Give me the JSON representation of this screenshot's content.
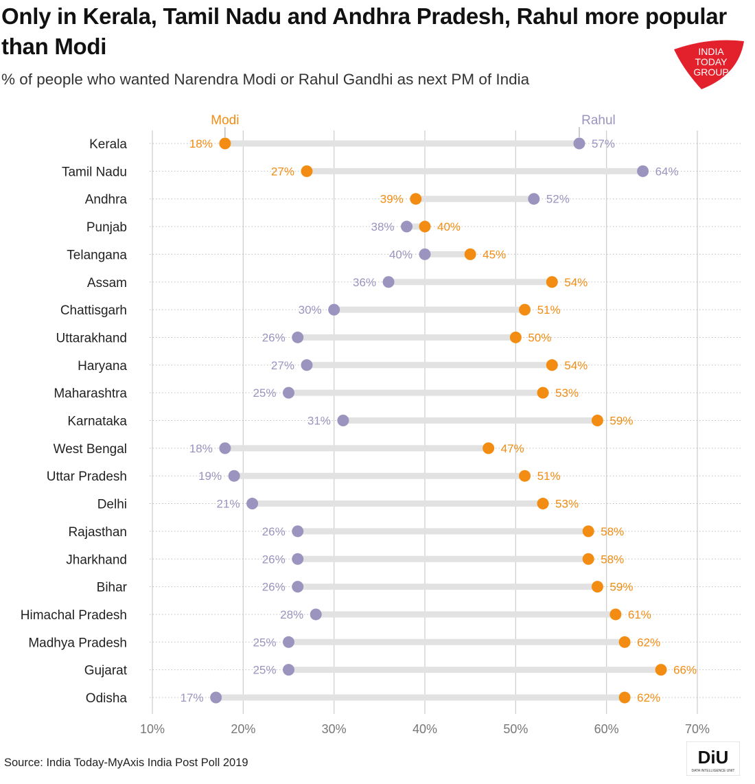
{
  "title": "Only in Kerala, Tamil Nadu and Andhra Pradesh, Rahul more popular than Modi",
  "subtitle": "% of people who wanted Narendra Modi or Rahul Gandhi as next PM of India",
  "source": "Source: India Today-MyAxis India Post Poll 2019",
  "logo": {
    "lines": [
      "INDIA",
      "TODAY",
      "GROUP"
    ],
    "color": "#e3212d"
  },
  "diu_logo": {
    "text": "DiU",
    "subtext": "DATA INTELLIGENCE UNIT"
  },
  "colors": {
    "modi": "#f28c12",
    "rahul": "#9a94bf",
    "connector": "#e2e2e2",
    "grid": "#cfcfcf"
  },
  "chart_data": {
    "type": "dumbbell",
    "title": "Only in Kerala, Tamil Nadu and Andhra Pradesh, Rahul more popular than Modi",
    "subtitle": "% of people who wanted Narendra Modi or Rahul Gandhi as next PM of India",
    "xlim": [
      10,
      70
    ],
    "xticks": [
      "10%",
      "20%",
      "30%",
      "40%",
      "50%",
      "60%",
      "70%"
    ],
    "xtick_values": [
      10,
      20,
      30,
      40,
      50,
      60,
      70
    ],
    "grid": true,
    "legend": {
      "modi": "Modi",
      "rahul": "Rahul"
    },
    "categories": [
      "Kerala",
      "Tamil Nadu",
      "Andhra",
      "Punjab",
      "Telangana",
      "Assam",
      "Chattisgarh",
      "Uttarakhand",
      "Haryana",
      "Maharashtra",
      "Karnataka",
      "West Bengal",
      "Uttar Pradesh",
      "Delhi",
      "Rajasthan",
      "Jharkhand",
      "Bihar",
      "Himachal Pradesh",
      "Madhya Pradesh",
      "Gujarat",
      "Odisha"
    ],
    "series": [
      {
        "name": "Modi",
        "values": [
          18,
          27,
          39,
          40,
          45,
          54,
          51,
          50,
          54,
          53,
          59,
          47,
          51,
          53,
          58,
          58,
          59,
          61,
          62,
          66,
          62
        ]
      },
      {
        "name": "Rahul",
        "values": [
          57,
          64,
          52,
          38,
          40,
          36,
          30,
          26,
          27,
          25,
          31,
          18,
          19,
          21,
          26,
          26,
          26,
          28,
          25,
          25,
          17
        ]
      }
    ]
  }
}
